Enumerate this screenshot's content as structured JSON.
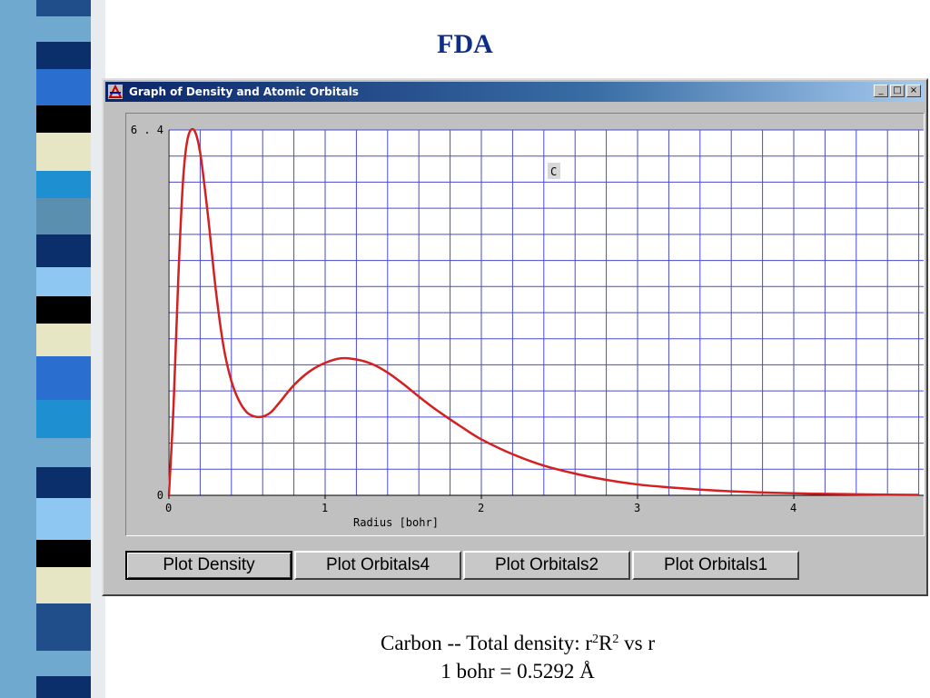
{
  "slide": {
    "title": "FDA",
    "caption_line1_prefix": "Carbon -- Total density:  r",
    "caption_sup1": "2",
    "caption_mid": "R",
    "caption_sup2": "2",
    "caption_suffix": "  vs  r",
    "caption_line2": "1 bohr = 0.5292 Å"
  },
  "window": {
    "title": "Graph of Density and Atomic Orbitals",
    "minimize_glyph": "_",
    "maximize_glyph": "□",
    "close_glyph": "×"
  },
  "buttons": {
    "plot_density": "Plot Density",
    "plot_orbitals4": "Plot Orbitals4",
    "plot_orbitals2": "Plot Orbitals2",
    "plot_orbitals1": "Plot Orbitals1"
  },
  "colors": {
    "curve": "#d42020",
    "grid": "#4a4ad0",
    "title": "#0e2d86"
  },
  "chart_data": {
    "type": "line",
    "title": "",
    "xlabel": "Radius [bohr]",
    "ylabel": "",
    "series_label": "C",
    "xlim": [
      0,
      4.8
    ],
    "ylim": [
      0,
      6.4
    ],
    "x_ticks": [
      "0",
      "1",
      "2",
      "3",
      "4"
    ],
    "y_ticks": [
      "0",
      "6.4"
    ],
    "grid": true,
    "series": [
      {
        "x": [
          0,
          0.03,
          0.06,
          0.09,
          0.12,
          0.16,
          0.2,
          0.25,
          0.3,
          0.35,
          0.4,
          0.45,
          0.5,
          0.55,
          0.6,
          0.65,
          0.7,
          0.8,
          0.9,
          1.0,
          1.1,
          1.2,
          1.3,
          1.4,
          1.5,
          1.6,
          1.7,
          1.8,
          1.9,
          2.0,
          2.2,
          2.4,
          2.6,
          2.8,
          3.0,
          3.2,
          3.4,
          3.6,
          3.8,
          4.0,
          4.2,
          4.4,
          4.6,
          4.8
        ],
        "y": [
          0,
          1.6,
          3.8,
          5.5,
          6.25,
          6.4,
          6.0,
          4.9,
          3.6,
          2.6,
          2.0,
          1.65,
          1.45,
          1.38,
          1.38,
          1.45,
          1.6,
          1.93,
          2.17,
          2.32,
          2.4,
          2.38,
          2.3,
          2.15,
          1.95,
          1.73,
          1.52,
          1.33,
          1.15,
          0.98,
          0.72,
          0.52,
          0.38,
          0.27,
          0.19,
          0.14,
          0.1,
          0.07,
          0.05,
          0.035,
          0.025,
          0.018,
          0.012,
          0.008
        ]
      }
    ]
  }
}
